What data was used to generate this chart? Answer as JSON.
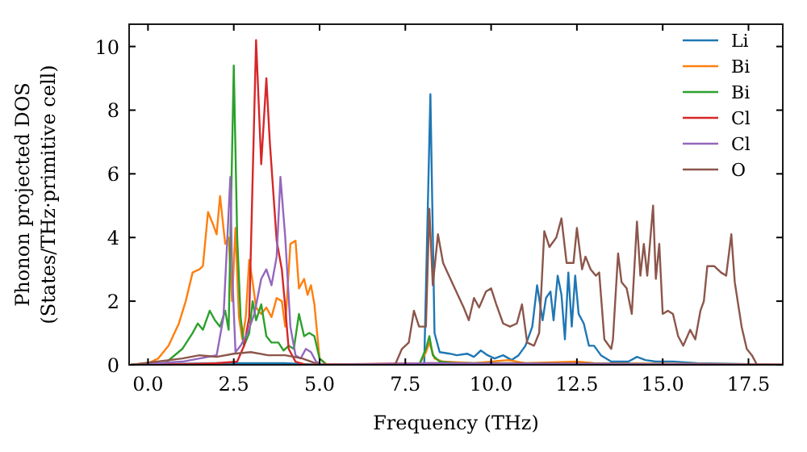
{
  "chart_data": {
    "type": "line",
    "xlabel": "Frequency (THz)",
    "ylabel": "Phonon projected DOS\n(States/THz·primitive cell)",
    "xlim": [
      -0.55,
      18.5
    ],
    "ylim": [
      0,
      10.7
    ],
    "xticks": [
      {
        "value": 0,
        "label": "0.0"
      },
      {
        "value": 2.5,
        "label": "2.5"
      },
      {
        "value": 5,
        "label": "5.0"
      },
      {
        "value": 7.5,
        "label": "7.5"
      },
      {
        "value": 10,
        "label": "10.0"
      },
      {
        "value": 12.5,
        "label": "12.5"
      },
      {
        "value": 15,
        "label": "15.0"
      },
      {
        "value": 17.5,
        "label": "17.5"
      }
    ],
    "yticks": [
      0,
      2,
      4,
      6,
      8,
      10
    ],
    "legend": "top right",
    "line_style": "solid",
    "marker": "none",
    "series": [
      {
        "name": "Li",
        "color": "#1f77b4",
        "x": [
          -0.5,
          1,
          2,
          3,
          4,
          5,
          7.9,
          8.05,
          8.23,
          8.35,
          8.5,
          8.8,
          9.0,
          9.3,
          9.5,
          9.7,
          9.9,
          10.1,
          10.35,
          10.6,
          10.8,
          11.0,
          11.2,
          11.34,
          11.5,
          11.6,
          11.73,
          11.82,
          11.94,
          12.05,
          12.15,
          12.25,
          12.35,
          12.45,
          12.55,
          12.7,
          12.85,
          13.0,
          13.2,
          13.5,
          14.0,
          14.25,
          14.5,
          14.8,
          15.3,
          16.0,
          17.5
        ],
        "values": [
          0,
          0.03,
          0.05,
          0.05,
          0.05,
          0,
          0,
          0,
          8.5,
          1.0,
          0.4,
          0.35,
          0.3,
          0.35,
          0.25,
          0.45,
          0.3,
          0.2,
          0.3,
          0.15,
          0.3,
          0.6,
          1.2,
          2.5,
          1.4,
          2.1,
          2.3,
          1.4,
          2.8,
          2.2,
          0.8,
          2.9,
          1.2,
          2.8,
          1.6,
          1.3,
          0.6,
          0.6,
          0.3,
          0.1,
          0.1,
          0.25,
          0.15,
          0.1,
          0.1,
          0.05,
          0.02
        ]
      },
      {
        "name": "Bi",
        "color": "#ff7f0e",
        "x": [
          -0.5,
          0,
          0.3,
          0.6,
          0.9,
          1.1,
          1.3,
          1.5,
          1.6,
          1.75,
          1.9,
          2.0,
          2.1,
          2.25,
          2.35,
          2.45,
          2.55,
          2.65,
          2.75,
          2.85,
          2.95,
          3.05,
          3.15,
          3.3,
          3.45,
          3.6,
          3.75,
          3.9,
          4.0,
          4.15,
          4.3,
          4.4,
          4.55,
          4.65,
          4.75,
          4.85,
          5.0,
          5.2,
          7.9,
          8.1,
          8.2,
          8.35,
          8.6,
          9.5,
          10.5,
          11.0,
          12.5,
          13.0,
          17.5,
          18.5
        ],
        "values": [
          0,
          0.05,
          0.2,
          0.6,
          1.3,
          2.0,
          2.9,
          3.0,
          3.1,
          4.8,
          4.4,
          4.1,
          5.3,
          3.8,
          4.0,
          2.0,
          4.3,
          1.5,
          0.8,
          1.5,
          3.3,
          2.6,
          1.8,
          1.6,
          1.8,
          1.5,
          2.1,
          2.0,
          1.2,
          3.8,
          3.9,
          2.4,
          2.7,
          2.2,
          2.5,
          1.9,
          0.2,
          0.02,
          0,
          0.4,
          0.7,
          0.2,
          0.1,
          0.05,
          0.15,
          0.05,
          0.1,
          0.05,
          0.02,
          0
        ]
      },
      {
        "name": "Bi",
        "color": "#2ca02c",
        "x": [
          -0.5,
          0.5,
          1.0,
          1.3,
          1.45,
          1.6,
          1.8,
          1.95,
          2.1,
          2.25,
          2.35,
          2.5,
          2.6,
          2.7,
          2.8,
          2.95,
          3.05,
          3.15,
          3.3,
          3.45,
          3.6,
          3.8,
          3.95,
          4.1,
          4.25,
          4.4,
          4.55,
          4.7,
          4.85,
          5.0,
          5.2,
          7.9,
          8.1,
          8.2,
          8.3,
          8.5,
          9.0,
          10.5,
          18.5
        ],
        "values": [
          0,
          0.05,
          0.5,
          1.0,
          1.3,
          1.1,
          1.7,
          1.4,
          1.2,
          1.7,
          1.1,
          9.4,
          4.0,
          1.5,
          0.6,
          1.0,
          2.0,
          1.4,
          1.9,
          0.9,
          0.7,
          0.7,
          0.45,
          0.6,
          0.5,
          1.6,
          0.9,
          1.0,
          0.9,
          0.2,
          0,
          0,
          0.5,
          0.9,
          0.3,
          0.1,
          0.05,
          0.05,
          0
        ]
      },
      {
        "name": "Cl",
        "color": "#d62728",
        "x": [
          -0.5,
          1.0,
          2.0,
          2.6,
          2.8,
          2.95,
          3.15,
          3.3,
          3.45,
          3.55,
          3.75,
          3.9,
          4.0,
          4.1,
          4.3,
          4.6,
          8.2,
          18.5
        ],
        "values": [
          0,
          0.02,
          0.05,
          0.1,
          0.6,
          1.5,
          10.2,
          6.3,
          9.0,
          7.0,
          3.9,
          3.0,
          1.8,
          0.5,
          0.1,
          0,
          0.05,
          0
        ]
      },
      {
        "name": "Cl",
        "color": "#9467bd",
        "x": [
          -0.5,
          1.0,
          1.5,
          2.0,
          2.2,
          2.4,
          2.45,
          2.55,
          2.7,
          2.9,
          3.1,
          3.3,
          3.45,
          3.6,
          3.75,
          3.86,
          4.0,
          4.15,
          4.3,
          4.45,
          4.6,
          4.75,
          4.9,
          5.1,
          8.2,
          18.5
        ],
        "values": [
          0,
          0.1,
          0.2,
          0.3,
          1.5,
          5.9,
          3.0,
          0.4,
          0.6,
          1.0,
          1.6,
          2.7,
          3.0,
          2.5,
          3.4,
          5.9,
          4.0,
          1.2,
          0.3,
          0.2,
          0.5,
          0.4,
          0.1,
          0,
          0.05,
          0
        ]
      },
      {
        "name": "O",
        "color": "#8c564b",
        "x": [
          -0.5,
          1.0,
          1.5,
          2.0,
          2.5,
          3.0,
          3.5,
          4.0,
          4.5,
          5.0,
          7.2,
          7.4,
          7.6,
          7.75,
          7.9,
          8.1,
          8.2,
          8.3,
          8.45,
          8.6,
          8.9,
          9.2,
          9.35,
          9.5,
          9.65,
          9.85,
          10.0,
          10.15,
          10.35,
          10.55,
          10.75,
          10.9,
          11.05,
          11.25,
          11.4,
          11.55,
          11.7,
          11.9,
          12.05,
          12.2,
          12.4,
          12.5,
          12.65,
          12.75,
          12.9,
          13.05,
          13.15,
          13.3,
          13.5,
          13.55,
          13.7,
          13.8,
          13.95,
          14.1,
          14.25,
          14.35,
          14.45,
          14.55,
          14.72,
          14.8,
          14.9,
          15.0,
          15.15,
          15.3,
          15.45,
          15.6,
          15.8,
          15.95,
          16.1,
          16.2,
          16.3,
          16.5,
          16.7,
          16.85,
          17.0,
          17.1,
          17.3,
          17.45,
          17.6,
          17.75,
          18.5
        ],
        "values": [
          0,
          0.2,
          0.3,
          0.25,
          0.35,
          0.4,
          0.3,
          0.3,
          0.2,
          0,
          0,
          0.5,
          0.7,
          1.7,
          1.2,
          1.2,
          4.9,
          2.5,
          4.1,
          3.2,
          2.5,
          1.8,
          1.4,
          2.1,
          1.8,
          2.3,
          2.4,
          1.9,
          1.3,
          1.2,
          1.3,
          1.9,
          0.7,
          0.6,
          1.0,
          4.2,
          3.7,
          4.0,
          4.6,
          3.2,
          3.2,
          4.3,
          3.0,
          3.4,
          3.0,
          2.8,
          2.9,
          0.8,
          0.5,
          0.8,
          3.5,
          2.6,
          2.4,
          1.6,
          4.5,
          2.8,
          3.8,
          2.8,
          5.0,
          2.7,
          3.8,
          1.6,
          1.7,
          1.6,
          0.9,
          0.6,
          1.1,
          0.8,
          1.7,
          2.0,
          3.1,
          3.1,
          2.9,
          2.8,
          4.1,
          2.6,
          1.2,
          0.5,
          0.3,
          0,
          0
        ]
      }
    ]
  }
}
